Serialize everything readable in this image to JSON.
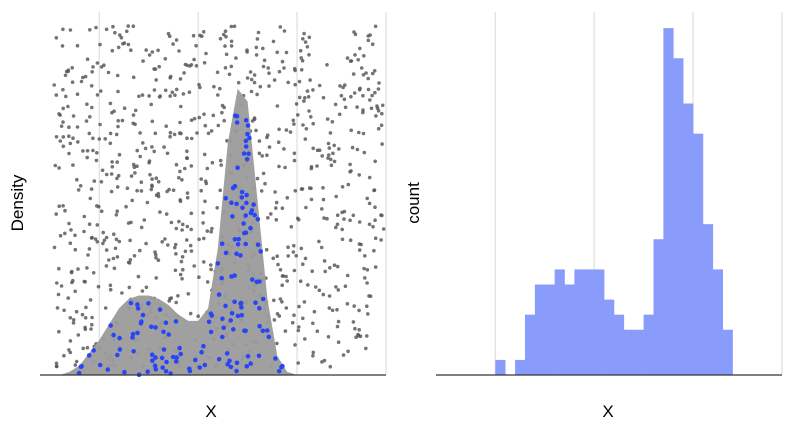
{
  "colors": {
    "background": "#ffffff",
    "grid": "#e3e3e3",
    "axis": "#333333",
    "background_points": "#555555",
    "density_fill": "#9b9b9b",
    "highlight_points": "#2a45f5",
    "histogram_fill": "#8a9cfb"
  },
  "chart_data": [
    {
      "type": "area",
      "xlabel": "X",
      "ylabel": "Density",
      "xlim": [
        -5.5,
        12
      ],
      "ylim": [
        0,
        1
      ],
      "grid": "vertical lines only",
      "tick_labels_shown": false,
      "x_grid_values": [
        -2.5,
        2.5,
        7.5,
        12
      ],
      "density_curve": {
        "x": [
          -5.0,
          -4.5,
          -4.0,
          -3.5,
          -3.0,
          -2.5,
          -2.0,
          -1.5,
          -1.0,
          -0.5,
          0.0,
          0.5,
          1.0,
          1.5,
          2.0,
          2.5,
          3.0,
          3.5,
          4.0,
          4.5,
          5.0,
          5.5,
          6.0,
          6.5,
          7.0,
          7.5,
          8.0
        ],
        "y": [
          0.0,
          0.0,
          0.01,
          0.03,
          0.07,
          0.11,
          0.16,
          0.21,
          0.24,
          0.25,
          0.25,
          0.24,
          0.22,
          0.19,
          0.17,
          0.17,
          0.21,
          0.4,
          0.73,
          0.9,
          0.86,
          0.55,
          0.24,
          0.06,
          0.01,
          0.0,
          0.0
        ]
      },
      "background_points": {
        "count": 900,
        "distribution": "uniform over plot area",
        "color": "#555555"
      },
      "highlighted_points": {
        "count": 150,
        "distribution": "sampled beneath the density curve",
        "color": "#2a45f5"
      }
    },
    {
      "type": "bar",
      "xlabel": "X",
      "ylabel": "count",
      "xlim": [
        -5.5,
        12
      ],
      "ylim": [
        0,
        24
      ],
      "grid": "vertical lines only",
      "tick_labels_shown": false,
      "x_grid_values": [
        -2.5,
        2.5,
        7.5,
        12
      ],
      "bin_width": 0.5,
      "bin_edges_start": -3.0,
      "values": [
        0,
        1,
        0,
        1,
        4,
        6,
        6,
        7,
        6,
        7,
        7,
        7,
        5,
        4,
        3,
        3,
        4,
        9,
        23,
        21,
        18,
        16,
        10,
        7,
        3
      ]
    }
  ]
}
